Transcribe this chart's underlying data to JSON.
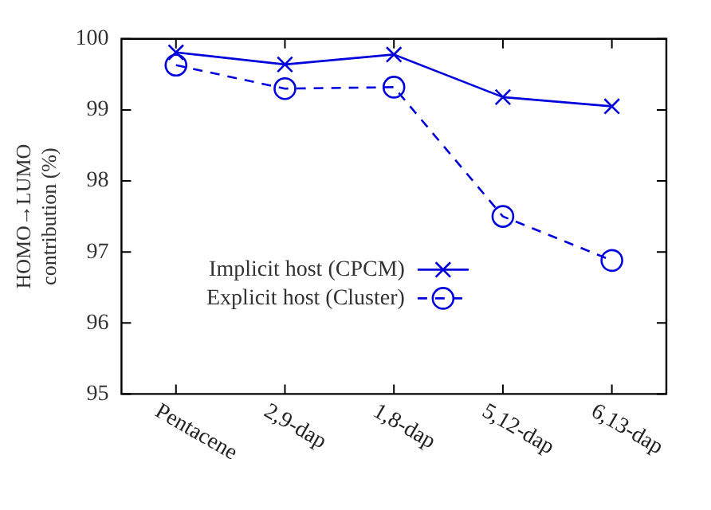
{
  "chart_data": {
    "type": "line",
    "ylabel": "HOMO→LUMO contribution (%)",
    "categories": [
      "Pentacene",
      "2,9-dap",
      "1,8-dap",
      "5,12-dap",
      "6,13-dap"
    ],
    "series": [
      {
        "name": "Implicit host (CPCM)",
        "color": "#0000dd",
        "values": [
          99.81,
          99.64,
          99.78,
          99.18,
          99.05
        ],
        "marker": "cross",
        "line_style": "solid"
      },
      {
        "name": "Explicit host (Cluster)",
        "color": "#0000dd",
        "values": [
          99.63,
          99.3,
          99.32,
          97.5,
          96.88
        ],
        "marker": "circle",
        "line_style": "dashed"
      }
    ],
    "ylim": [
      95,
      100
    ],
    "yticks": [
      95,
      96,
      97,
      98,
      99,
      100
    ],
    "grid": false,
    "legend": "bottom"
  }
}
